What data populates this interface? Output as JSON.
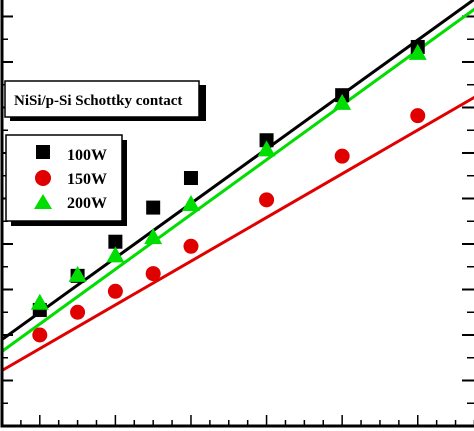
{
  "chart_data": {
    "type": "scatter",
    "title": "NiSi/p-Si Schottky contact",
    "xlabel": "",
    "ylabel": "",
    "legend_position": "top-left",
    "grid": false,
    "x": [
      1,
      2,
      3,
      4,
      5,
      7,
      9,
      11
    ],
    "xlim": [
      0.0,
      12.7
    ],
    "ylim": [
      0.0,
      9.45
    ],
    "series": [
      {
        "name": "100W",
        "marker": "square",
        "color": "#000000",
        "x": [
          1,
          2,
          3,
          4,
          5,
          7,
          9,
          11
        ],
        "values": [
          2.55,
          3.3,
          4.05,
          4.8,
          5.45,
          6.28,
          7.27,
          8.33
        ],
        "fit": {
          "x": [
            0.0,
            12.7
          ],
          "y": [
            1.9,
            9.5
          ]
        }
      },
      {
        "name": "150W",
        "marker": "circle",
        "color": "#e00000",
        "x": [
          1,
          2,
          3,
          4,
          5,
          7,
          9,
          11
        ],
        "values": [
          2.0,
          2.5,
          2.96,
          3.35,
          3.95,
          4.97,
          5.93,
          6.82
        ],
        "fit": {
          "x": [
            0.0,
            12.7
          ],
          "y": [
            1.22,
            7.32
          ]
        }
      },
      {
        "name": "200W",
        "marker": "triangle",
        "color": "#00dd00",
        "x": [
          1,
          2,
          3,
          4,
          5,
          7,
          9,
          11
        ],
        "values": [
          2.71,
          3.32,
          3.75,
          4.15,
          4.88,
          6.08,
          7.1,
          8.2
        ],
        "fit": {
          "x": [
            0.0,
            12.7
          ],
          "y": [
            1.64,
            9.28
          ]
        }
      }
    ]
  },
  "colors": {
    "frame": "#000000",
    "background": "#ffffff"
  }
}
